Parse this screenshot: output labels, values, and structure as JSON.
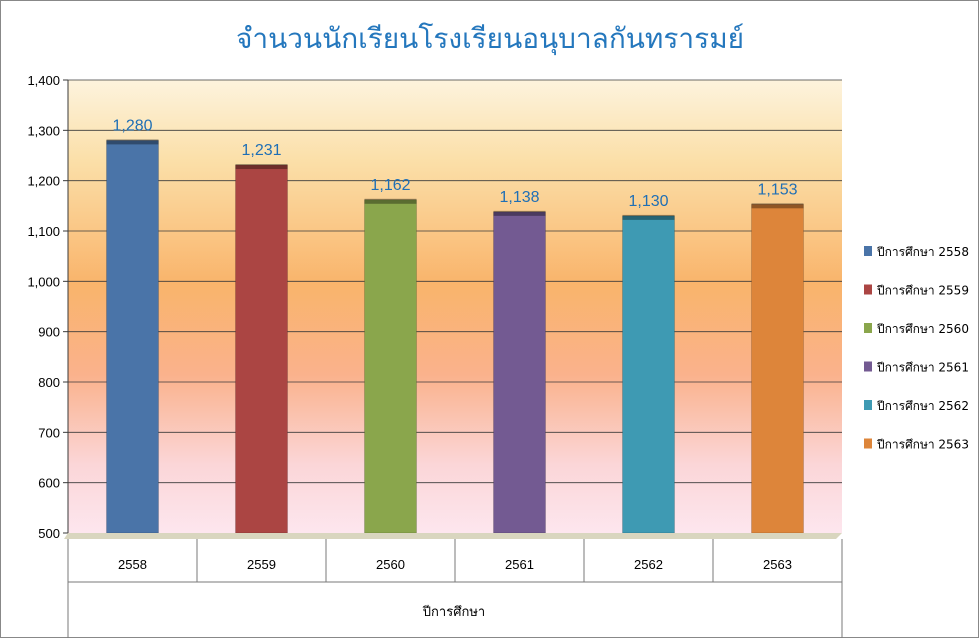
{
  "chart_data": {
    "type": "bar",
    "title": "จำนวนนักเรียนโรงเรียนอนุบาลกันทรารมย์",
    "xlabel": "ปีการศึกษา",
    "ylabel": "",
    "categories": [
      "2558",
      "2559",
      "2560",
      "2561",
      "2562",
      "2563"
    ],
    "values": [
      1280,
      1231,
      1162,
      1138,
      1130,
      1153
    ],
    "data_labels": [
      "1,280",
      "1,231",
      "1,162",
      "1,138",
      "1,130",
      "1,153"
    ],
    "legend": [
      "ปีการศึกษา 2558",
      "ปีการศึกษา 2559",
      "ปีการศึกษา 2560",
      "ปีการศึกษา 2561",
      "ปีการศึกษา 2562",
      "ปีการศึกษา 2563"
    ],
    "colors": [
      "#4a74a8",
      "#ab4543",
      "#8aa64c",
      "#735a92",
      "#3e9ab3",
      "#dd853a"
    ],
    "ylim": [
      500,
      1400
    ],
    "yticks": [
      "500",
      "600",
      "700",
      "800",
      "900",
      "1,000",
      "1,100",
      "1,200",
      "1,300",
      "1,400"
    ],
    "ytick_values": [
      500,
      600,
      700,
      800,
      900,
      1000,
      1100,
      1200,
      1300,
      1400
    ],
    "grid": true,
    "legend_position": "right"
  }
}
